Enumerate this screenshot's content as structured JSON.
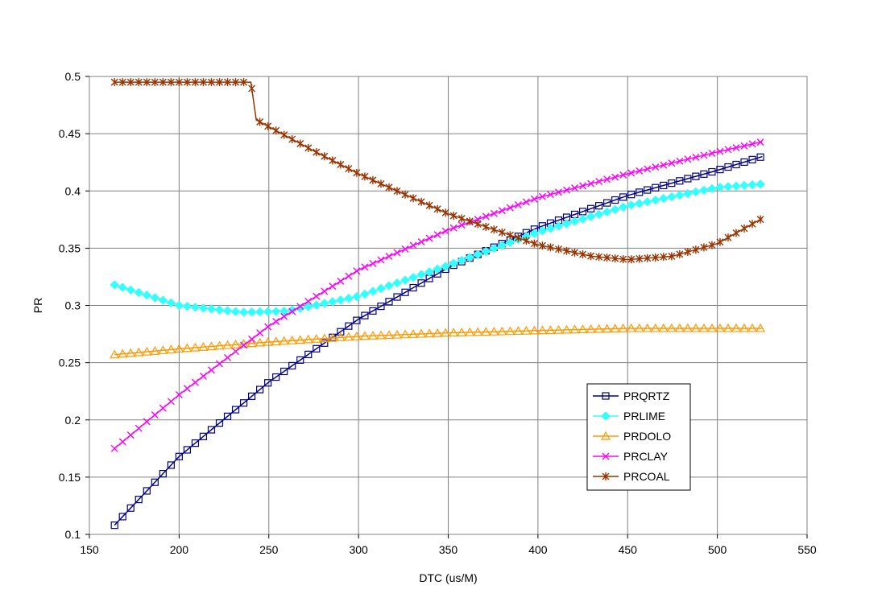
{
  "chart_data": {
    "type": "line",
    "title": "",
    "xlabel": "DTC (us/M)",
    "ylabel": "PR",
    "xlim": [
      150,
      550
    ],
    "ylim": [
      0.1,
      0.5
    ],
    "xticks": [
      150,
      200,
      250,
      300,
      350,
      400,
      450,
      500,
      550
    ],
    "yticks": [
      0.1,
      0.15,
      0.2,
      0.25,
      0.3,
      0.35,
      0.4,
      0.45,
      0.5
    ],
    "xtick_labels": [
      "150",
      "200",
      "250",
      "300",
      "350",
      "400",
      "450",
      "500",
      "550"
    ],
    "ytick_labels": [
      "0.1",
      "0.15",
      "0.2",
      "0.25",
      "0.3",
      "0.35",
      "0.4",
      "0.45",
      "0.5"
    ],
    "grid": true,
    "legend_position": "lower-right",
    "series": [
      {
        "name": "PRQRTZ",
        "color": "#000080",
        "marker": "square",
        "x": [
          164,
          200,
          250,
          300,
          350,
          400,
          450,
          500,
          525
        ],
        "y": [
          0.108,
          0.168,
          0.233,
          0.288,
          0.333,
          0.368,
          0.396,
          0.418,
          0.43
        ]
      },
      {
        "name": "PRLIME",
        "color": "#33FFFF",
        "marker": "diamond",
        "x": [
          164,
          200,
          235,
          260,
          300,
          350,
          400,
          450,
          500,
          525
        ],
        "y": [
          0.318,
          0.3,
          0.294,
          0.295,
          0.308,
          0.335,
          0.364,
          0.387,
          0.403,
          0.406
        ]
      },
      {
        "name": "PRDOLO",
        "color": "#FF9900",
        "marker": "triangle",
        "x": [
          164,
          200,
          250,
          300,
          350,
          400,
          450,
          500,
          525
        ],
        "y": [
          0.257,
          0.262,
          0.268,
          0.273,
          0.276,
          0.278,
          0.28,
          0.28,
          0.28
        ]
      },
      {
        "name": "PRCLAY",
        "color": "#FF00FF",
        "marker": "x",
        "x": [
          164,
          200,
          250,
          300,
          350,
          400,
          450,
          500,
          525
        ],
        "y": [
          0.175,
          0.222,
          0.282,
          0.331,
          0.366,
          0.394,
          0.415,
          0.434,
          0.443
        ]
      },
      {
        "name": "PRCOAL",
        "color": "#993300",
        "marker": "star",
        "x": [
          164,
          200,
          240,
          243,
          275,
          300,
          350,
          400,
          430,
          450,
          475,
          500,
          525
        ],
        "y": [
          0.495,
          0.495,
          0.495,
          0.462,
          0.435,
          0.415,
          0.38,
          0.353,
          0.343,
          0.34,
          0.343,
          0.354,
          0.376
        ]
      }
    ]
  }
}
